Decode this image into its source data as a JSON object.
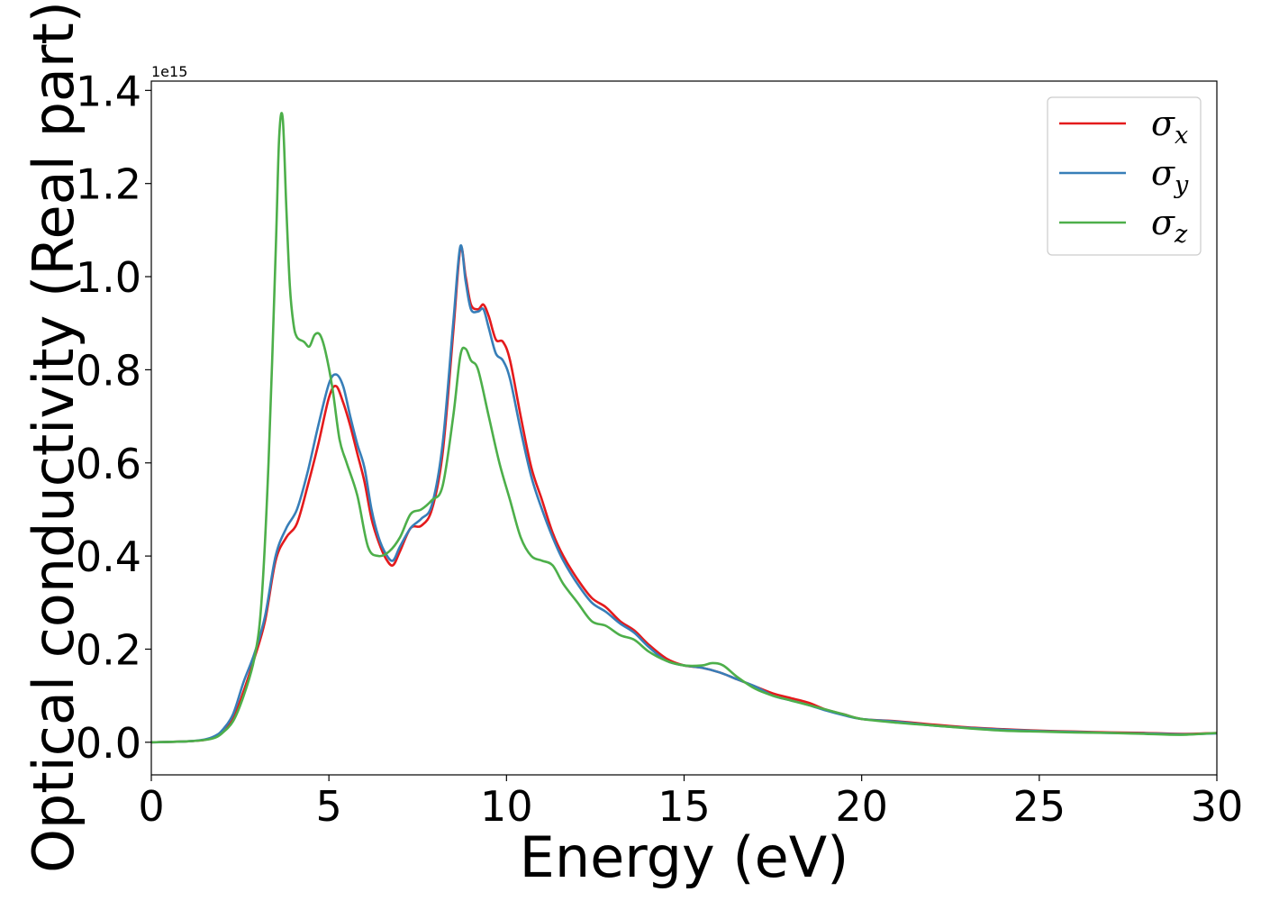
{
  "chart_data": {
    "type": "line",
    "xlabel": "Energy (eV)",
    "ylabel": "Optical conductivity (Real part)",
    "y_offset_text": "1e15",
    "xlim": [
      0,
      30
    ],
    "ylim": [
      -0.07,
      1.42
    ],
    "grid": false,
    "legend_position": "top-right",
    "x_ticks": [
      {
        "value": 0,
        "label": "0"
      },
      {
        "value": 5,
        "label": "5"
      },
      {
        "value": 10,
        "label": "10"
      },
      {
        "value": 15,
        "label": "15"
      },
      {
        "value": 20,
        "label": "20"
      },
      {
        "value": 25,
        "label": "25"
      },
      {
        "value": 30,
        "label": "30"
      }
    ],
    "y_ticks": [
      {
        "value": 0.0,
        "label": "0.0"
      },
      {
        "value": 0.2,
        "label": "0.2"
      },
      {
        "value": 0.4,
        "label": "0.4"
      },
      {
        "value": 0.6,
        "label": "0.6"
      },
      {
        "value": 0.8,
        "label": "0.8"
      },
      {
        "value": 1.0,
        "label": "1.0"
      },
      {
        "value": 1.2,
        "label": "1.2"
      },
      {
        "value": 1.4,
        "label": "1.4"
      }
    ],
    "series": [
      {
        "name": "σ_x",
        "legend_main": "σ",
        "legend_sub": "x",
        "color": "#e41a1c",
        "x": [
          0,
          1,
          1.5,
          1.8,
          2.0,
          2.3,
          2.6,
          2.9,
          3.2,
          3.5,
          3.8,
          4.1,
          4.4,
          4.7,
          5.0,
          5.2,
          5.4,
          5.6,
          5.8,
          6.0,
          6.2,
          6.4,
          6.6,
          6.8,
          7.0,
          7.3,
          7.6,
          7.9,
          8.2,
          8.5,
          8.7,
          8.85,
          9.0,
          9.2,
          9.35,
          9.5,
          9.7,
          9.9,
          10.1,
          10.4,
          10.7,
          11.0,
          11.3,
          11.6,
          12.0,
          12.4,
          12.8,
          13.2,
          13.6,
          14.0,
          14.5,
          15.0,
          15.5,
          16.0,
          16.5,
          17.0,
          17.5,
          18.0,
          18.5,
          19.0,
          19.5,
          20.0,
          21,
          22,
          23,
          24,
          25,
          26,
          27,
          28,
          29,
          30
        ],
        "values": [
          0,
          0.002,
          0.005,
          0.012,
          0.022,
          0.05,
          0.11,
          0.18,
          0.26,
          0.39,
          0.44,
          0.47,
          0.55,
          0.64,
          0.74,
          0.765,
          0.73,
          0.68,
          0.62,
          0.56,
          0.48,
          0.43,
          0.395,
          0.38,
          0.41,
          0.46,
          0.465,
          0.5,
          0.62,
          0.88,
          1.06,
          1.0,
          0.94,
          0.93,
          0.94,
          0.915,
          0.865,
          0.86,
          0.82,
          0.7,
          0.59,
          0.52,
          0.45,
          0.4,
          0.35,
          0.31,
          0.29,
          0.26,
          0.24,
          0.21,
          0.18,
          0.165,
          0.16,
          0.15,
          0.135,
          0.12,
          0.105,
          0.095,
          0.085,
          0.07,
          0.06,
          0.05,
          0.045,
          0.038,
          0.032,
          0.028,
          0.025,
          0.023,
          0.021,
          0.02,
          0.018,
          0.02
        ]
      },
      {
        "name": "σ_y",
        "legend_main": "σ",
        "legend_sub": "y",
        "color": "#377eb8",
        "x": [
          0,
          1,
          1.5,
          1.8,
          2.0,
          2.3,
          2.6,
          2.9,
          3.2,
          3.5,
          3.8,
          4.1,
          4.4,
          4.7,
          5.0,
          5.2,
          5.4,
          5.6,
          5.8,
          6.0,
          6.2,
          6.4,
          6.6,
          6.8,
          7.0,
          7.3,
          7.6,
          7.9,
          8.2,
          8.5,
          8.7,
          8.85,
          9.0,
          9.2,
          9.35,
          9.5,
          9.7,
          9.9,
          10.1,
          10.4,
          10.7,
          11.0,
          11.3,
          11.6,
          12.0,
          12.4,
          12.8,
          13.2,
          13.6,
          14.0,
          14.5,
          15.0,
          15.5,
          16.0,
          16.5,
          17.0,
          17.5,
          18.0,
          18.5,
          19.0,
          19.5,
          20.0,
          21,
          22,
          23,
          24,
          25,
          26,
          27,
          28,
          29,
          30
        ],
        "values": [
          0,
          0.002,
          0.006,
          0.014,
          0.026,
          0.06,
          0.13,
          0.19,
          0.27,
          0.4,
          0.46,
          0.5,
          0.58,
          0.68,
          0.77,
          0.79,
          0.765,
          0.7,
          0.64,
          0.59,
          0.5,
          0.44,
          0.405,
          0.39,
          0.42,
          0.46,
          0.48,
          0.51,
          0.64,
          0.9,
          1.065,
          0.99,
          0.93,
          0.925,
          0.93,
          0.89,
          0.835,
          0.82,
          0.78,
          0.67,
          0.57,
          0.5,
          0.44,
          0.39,
          0.34,
          0.3,
          0.28,
          0.255,
          0.235,
          0.205,
          0.175,
          0.165,
          0.16,
          0.15,
          0.135,
          0.12,
          0.1,
          0.09,
          0.08,
          0.068,
          0.058,
          0.05,
          0.044,
          0.036,
          0.031,
          0.027,
          0.024,
          0.022,
          0.02,
          0.019,
          0.017,
          0.019
        ]
      },
      {
        "name": "σ_z",
        "legend_main": "σ",
        "legend_sub": "z",
        "color": "#4daf4a",
        "x": [
          0,
          1,
          1.5,
          1.8,
          2.0,
          2.3,
          2.6,
          2.9,
          3.1,
          3.3,
          3.5,
          3.6,
          3.7,
          3.8,
          3.9,
          4.0,
          4.1,
          4.3,
          4.45,
          4.6,
          4.75,
          4.9,
          5.1,
          5.3,
          5.5,
          5.8,
          6.1,
          6.4,
          6.7,
          7.0,
          7.3,
          7.6,
          7.9,
          8.2,
          8.5,
          8.7,
          8.85,
          9.0,
          9.2,
          9.5,
          9.8,
          10.1,
          10.4,
          10.7,
          11.0,
          11.3,
          11.6,
          12.0,
          12.4,
          12.8,
          13.2,
          13.6,
          14.0,
          14.5,
          15.0,
          15.5,
          15.8,
          16.1,
          16.5,
          17.0,
          17.5,
          18.0,
          18.5,
          19.0,
          19.5,
          20.0,
          21,
          22,
          23,
          24,
          25,
          26,
          27,
          28,
          29,
          30
        ],
        "values": [
          0,
          0.002,
          0.005,
          0.01,
          0.02,
          0.045,
          0.1,
          0.18,
          0.3,
          0.6,
          1.05,
          1.3,
          1.34,
          1.15,
          0.98,
          0.9,
          0.87,
          0.86,
          0.85,
          0.875,
          0.875,
          0.84,
          0.76,
          0.65,
          0.6,
          0.53,
          0.42,
          0.4,
          0.41,
          0.44,
          0.49,
          0.5,
          0.52,
          0.55,
          0.7,
          0.83,
          0.845,
          0.82,
          0.8,
          0.7,
          0.6,
          0.52,
          0.44,
          0.4,
          0.39,
          0.38,
          0.34,
          0.3,
          0.26,
          0.25,
          0.23,
          0.22,
          0.195,
          0.175,
          0.165,
          0.165,
          0.17,
          0.165,
          0.14,
          0.115,
          0.1,
          0.09,
          0.08,
          0.07,
          0.06,
          0.05,
          0.042,
          0.036,
          0.03,
          0.025,
          0.023,
          0.021,
          0.02,
          0.018,
          0.016,
          0.02
        ]
      }
    ]
  }
}
